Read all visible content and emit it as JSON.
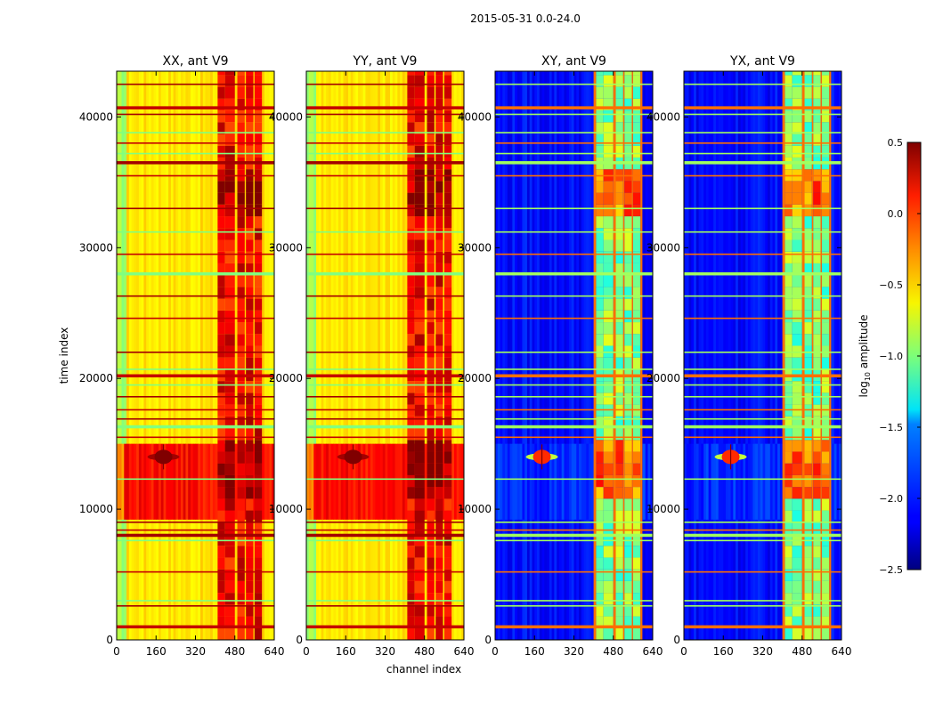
{
  "figure": {
    "suptitle": "2015-05-31 0.0-24.0"
  },
  "colorbar": {
    "label_main": "log",
    "label_sub": "10",
    "label_tail": " amplitude",
    "ticks": [
      "0.5",
      "0.0",
      "−0.5",
      "−1.0",
      "−1.5",
      "−2.0",
      "−2.5"
    ],
    "colormap": "jet",
    "range": [
      -2.5,
      0.5
    ]
  },
  "chart_data": [
    {
      "type": "heatmap",
      "title": "XX, ant V9",
      "ylabel": "time index",
      "xlabel": "",
      "xlim": [
        0,
        640
      ],
      "ylim": [
        0,
        43500
      ],
      "xticks": [
        "0",
        "160",
        "320",
        "480",
        "640"
      ],
      "yticks": [
        "0",
        "10000",
        "20000",
        "30000",
        "40000"
      ],
      "base_level": -0.55,
      "hot_band_level": 0.1,
      "hot_rows": [
        [
          9200,
          15000
        ]
      ],
      "source_channel": 190,
      "source_time": 14000
    },
    {
      "type": "heatmap",
      "title": "YY, ant V9",
      "ylabel": "",
      "xlabel": "channel index",
      "xlim": [
        0,
        640
      ],
      "ylim": [
        0,
        43500
      ],
      "xticks": [
        "0",
        "160",
        "320",
        "480",
        "640"
      ],
      "yticks": [
        "0",
        "10000",
        "20000",
        "30000",
        "40000"
      ],
      "base_level": -0.55,
      "hot_band_level": 0.1,
      "hot_rows": [
        [
          9200,
          15000
        ]
      ],
      "source_channel": 190,
      "source_time": 14000
    },
    {
      "type": "heatmap",
      "title": "XY, ant V9",
      "ylabel": "",
      "xlabel": "",
      "xlim": [
        0,
        640
      ],
      "ylim": [
        0,
        43500
      ],
      "xticks": [
        "0",
        "160",
        "320",
        "480",
        "640"
      ],
      "yticks": [
        "0",
        "10000",
        "20000",
        "30000",
        "40000"
      ],
      "base_level": -2.1,
      "hot_band_level": -2.0,
      "hot_rows": [
        [
          9200,
          15000
        ]
      ],
      "source_channel": 190,
      "source_time": 14000
    },
    {
      "type": "heatmap",
      "title": "YX, ant V9",
      "ylabel": "",
      "xlabel": "",
      "xlim": [
        0,
        640
      ],
      "ylim": [
        0,
        43500
      ],
      "xticks": [
        "0",
        "160",
        "320",
        "480",
        "640"
      ],
      "yticks": [
        "0",
        "10000",
        "20000",
        "30000",
        "40000"
      ],
      "base_level": -2.1,
      "hot_band_level": -2.0,
      "hot_rows": [
        [
          9200,
          15000
        ]
      ],
      "source_channel": 190,
      "source_time": 14000
    }
  ]
}
